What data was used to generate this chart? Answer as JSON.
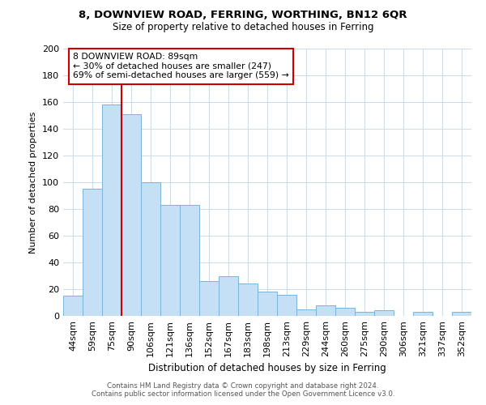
{
  "title1": "8, DOWNVIEW ROAD, FERRING, WORTHING, BN12 6QR",
  "title2": "Size of property relative to detached houses in Ferring",
  "xlabel": "Distribution of detached houses by size in Ferring",
  "ylabel": "Number of detached properties",
  "bar_labels": [
    "44sqm",
    "59sqm",
    "75sqm",
    "90sqm",
    "106sqm",
    "121sqm",
    "136sqm",
    "152sqm",
    "167sqm",
    "183sqm",
    "198sqm",
    "213sqm",
    "229sqm",
    "244sqm",
    "260sqm",
    "275sqm",
    "290sqm",
    "306sqm",
    "321sqm",
    "337sqm",
    "352sqm"
  ],
  "bar_values": [
    15,
    95,
    158,
    151,
    100,
    83,
    83,
    26,
    30,
    24,
    18,
    16,
    5,
    8,
    6,
    3,
    4,
    0,
    3,
    0,
    3
  ],
  "bar_color": "#c5dff5",
  "bar_edge_color": "#7ab3d8",
  "vline_x": 2.5,
  "vline_color": "#cc0000",
  "ylim": [
    0,
    200
  ],
  "yticks": [
    0,
    20,
    40,
    60,
    80,
    100,
    120,
    140,
    160,
    180,
    200
  ],
  "annotation_text": "8 DOWNVIEW ROAD: 89sqm\n← 30% of detached houses are smaller (247)\n69% of semi-detached houses are larger (559) →",
  "annotation_box_color": "#ffffff",
  "annotation_box_edge": "#cc0000",
  "footer1": "Contains HM Land Registry data © Crown copyright and database right 2024.",
  "footer2": "Contains public sector information licensed under the Open Government Licence v3.0.",
  "grid_color": "#d0dde8"
}
